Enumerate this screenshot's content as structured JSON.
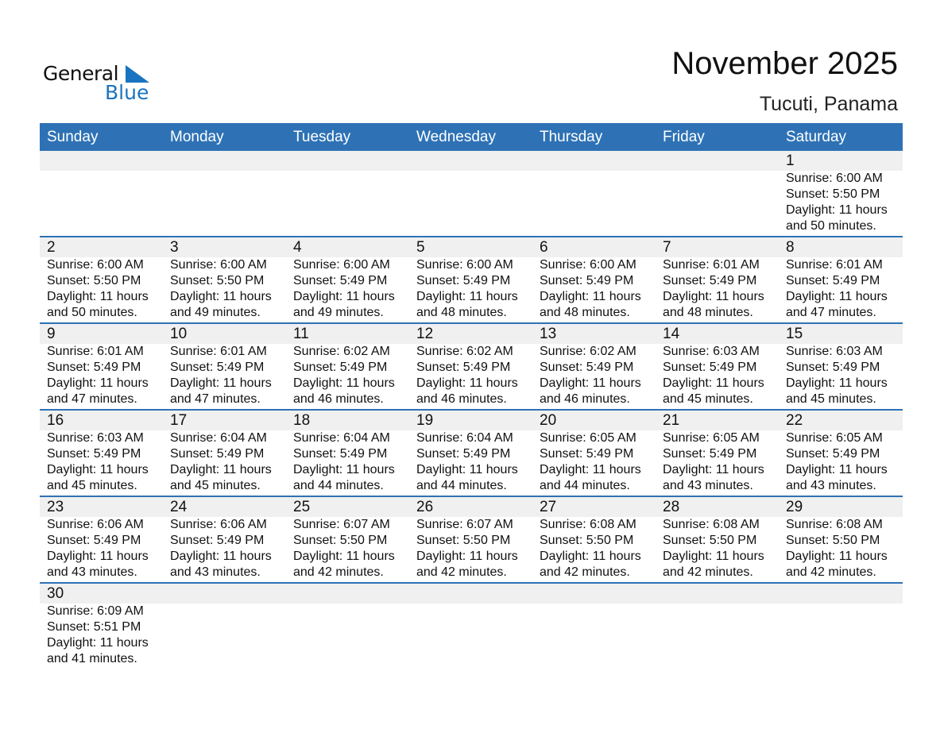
{
  "logo": {
    "text_general": "General",
    "text_blue": "Blue",
    "accent": "#1a73c0"
  },
  "header": {
    "title": "November 2025",
    "subtitle": "Tucuti, Panama"
  },
  "colors": {
    "header_bg": "#2e72b5",
    "date_band": "#f0f0f0"
  },
  "weekdays": [
    "Sunday",
    "Monday",
    "Tuesday",
    "Wednesday",
    "Thursday",
    "Friday",
    "Saturday"
  ],
  "weeks": [
    [
      null,
      null,
      null,
      null,
      null,
      null,
      {
        "day": "1",
        "sunrise": "Sunrise: 6:00 AM",
        "sunset": "Sunset: 5:50 PM",
        "daylight1": "Daylight: 11 hours",
        "daylight2": "and 50 minutes."
      }
    ],
    [
      {
        "day": "2",
        "sunrise": "Sunrise: 6:00 AM",
        "sunset": "Sunset: 5:50 PM",
        "daylight1": "Daylight: 11 hours",
        "daylight2": "and 50 minutes."
      },
      {
        "day": "3",
        "sunrise": "Sunrise: 6:00 AM",
        "sunset": "Sunset: 5:50 PM",
        "daylight1": "Daylight: 11 hours",
        "daylight2": "and 49 minutes."
      },
      {
        "day": "4",
        "sunrise": "Sunrise: 6:00 AM",
        "sunset": "Sunset: 5:49 PM",
        "daylight1": "Daylight: 11 hours",
        "daylight2": "and 49 minutes."
      },
      {
        "day": "5",
        "sunrise": "Sunrise: 6:00 AM",
        "sunset": "Sunset: 5:49 PM",
        "daylight1": "Daylight: 11 hours",
        "daylight2": "and 48 minutes."
      },
      {
        "day": "6",
        "sunrise": "Sunrise: 6:00 AM",
        "sunset": "Sunset: 5:49 PM",
        "daylight1": "Daylight: 11 hours",
        "daylight2": "and 48 minutes."
      },
      {
        "day": "7",
        "sunrise": "Sunrise: 6:01 AM",
        "sunset": "Sunset: 5:49 PM",
        "daylight1": "Daylight: 11 hours",
        "daylight2": "and 48 minutes."
      },
      {
        "day": "8",
        "sunrise": "Sunrise: 6:01 AM",
        "sunset": "Sunset: 5:49 PM",
        "daylight1": "Daylight: 11 hours",
        "daylight2": "and 47 minutes."
      }
    ],
    [
      {
        "day": "9",
        "sunrise": "Sunrise: 6:01 AM",
        "sunset": "Sunset: 5:49 PM",
        "daylight1": "Daylight: 11 hours",
        "daylight2": "and 47 minutes."
      },
      {
        "day": "10",
        "sunrise": "Sunrise: 6:01 AM",
        "sunset": "Sunset: 5:49 PM",
        "daylight1": "Daylight: 11 hours",
        "daylight2": "and 47 minutes."
      },
      {
        "day": "11",
        "sunrise": "Sunrise: 6:02 AM",
        "sunset": "Sunset: 5:49 PM",
        "daylight1": "Daylight: 11 hours",
        "daylight2": "and 46 minutes."
      },
      {
        "day": "12",
        "sunrise": "Sunrise: 6:02 AM",
        "sunset": "Sunset: 5:49 PM",
        "daylight1": "Daylight: 11 hours",
        "daylight2": "and 46 minutes."
      },
      {
        "day": "13",
        "sunrise": "Sunrise: 6:02 AM",
        "sunset": "Sunset: 5:49 PM",
        "daylight1": "Daylight: 11 hours",
        "daylight2": "and 46 minutes."
      },
      {
        "day": "14",
        "sunrise": "Sunrise: 6:03 AM",
        "sunset": "Sunset: 5:49 PM",
        "daylight1": "Daylight: 11 hours",
        "daylight2": "and 45 minutes."
      },
      {
        "day": "15",
        "sunrise": "Sunrise: 6:03 AM",
        "sunset": "Sunset: 5:49 PM",
        "daylight1": "Daylight: 11 hours",
        "daylight2": "and 45 minutes."
      }
    ],
    [
      {
        "day": "16",
        "sunrise": "Sunrise: 6:03 AM",
        "sunset": "Sunset: 5:49 PM",
        "daylight1": "Daylight: 11 hours",
        "daylight2": "and 45 minutes."
      },
      {
        "day": "17",
        "sunrise": "Sunrise: 6:04 AM",
        "sunset": "Sunset: 5:49 PM",
        "daylight1": "Daylight: 11 hours",
        "daylight2": "and 45 minutes."
      },
      {
        "day": "18",
        "sunrise": "Sunrise: 6:04 AM",
        "sunset": "Sunset: 5:49 PM",
        "daylight1": "Daylight: 11 hours",
        "daylight2": "and 44 minutes."
      },
      {
        "day": "19",
        "sunrise": "Sunrise: 6:04 AM",
        "sunset": "Sunset: 5:49 PM",
        "daylight1": "Daylight: 11 hours",
        "daylight2": "and 44 minutes."
      },
      {
        "day": "20",
        "sunrise": "Sunrise: 6:05 AM",
        "sunset": "Sunset: 5:49 PM",
        "daylight1": "Daylight: 11 hours",
        "daylight2": "and 44 minutes."
      },
      {
        "day": "21",
        "sunrise": "Sunrise: 6:05 AM",
        "sunset": "Sunset: 5:49 PM",
        "daylight1": "Daylight: 11 hours",
        "daylight2": "and 43 minutes."
      },
      {
        "day": "22",
        "sunrise": "Sunrise: 6:05 AM",
        "sunset": "Sunset: 5:49 PM",
        "daylight1": "Daylight: 11 hours",
        "daylight2": "and 43 minutes."
      }
    ],
    [
      {
        "day": "23",
        "sunrise": "Sunrise: 6:06 AM",
        "sunset": "Sunset: 5:49 PM",
        "daylight1": "Daylight: 11 hours",
        "daylight2": "and 43 minutes."
      },
      {
        "day": "24",
        "sunrise": "Sunrise: 6:06 AM",
        "sunset": "Sunset: 5:49 PM",
        "daylight1": "Daylight: 11 hours",
        "daylight2": "and 43 minutes."
      },
      {
        "day": "25",
        "sunrise": "Sunrise: 6:07 AM",
        "sunset": "Sunset: 5:50 PM",
        "daylight1": "Daylight: 11 hours",
        "daylight2": "and 42 minutes."
      },
      {
        "day": "26",
        "sunrise": "Sunrise: 6:07 AM",
        "sunset": "Sunset: 5:50 PM",
        "daylight1": "Daylight: 11 hours",
        "daylight2": "and 42 minutes."
      },
      {
        "day": "27",
        "sunrise": "Sunrise: 6:08 AM",
        "sunset": "Sunset: 5:50 PM",
        "daylight1": "Daylight: 11 hours",
        "daylight2": "and 42 minutes."
      },
      {
        "day": "28",
        "sunrise": "Sunrise: 6:08 AM",
        "sunset": "Sunset: 5:50 PM",
        "daylight1": "Daylight: 11 hours",
        "daylight2": "and 42 minutes."
      },
      {
        "day": "29",
        "sunrise": "Sunrise: 6:08 AM",
        "sunset": "Sunset: 5:50 PM",
        "daylight1": "Daylight: 11 hours",
        "daylight2": "and 42 minutes."
      }
    ],
    [
      {
        "day": "30",
        "sunrise": "Sunrise: 6:09 AM",
        "sunset": "Sunset: 5:51 PM",
        "daylight1": "Daylight: 11 hours",
        "daylight2": "and 41 minutes."
      },
      null,
      null,
      null,
      null,
      null,
      null
    ]
  ]
}
